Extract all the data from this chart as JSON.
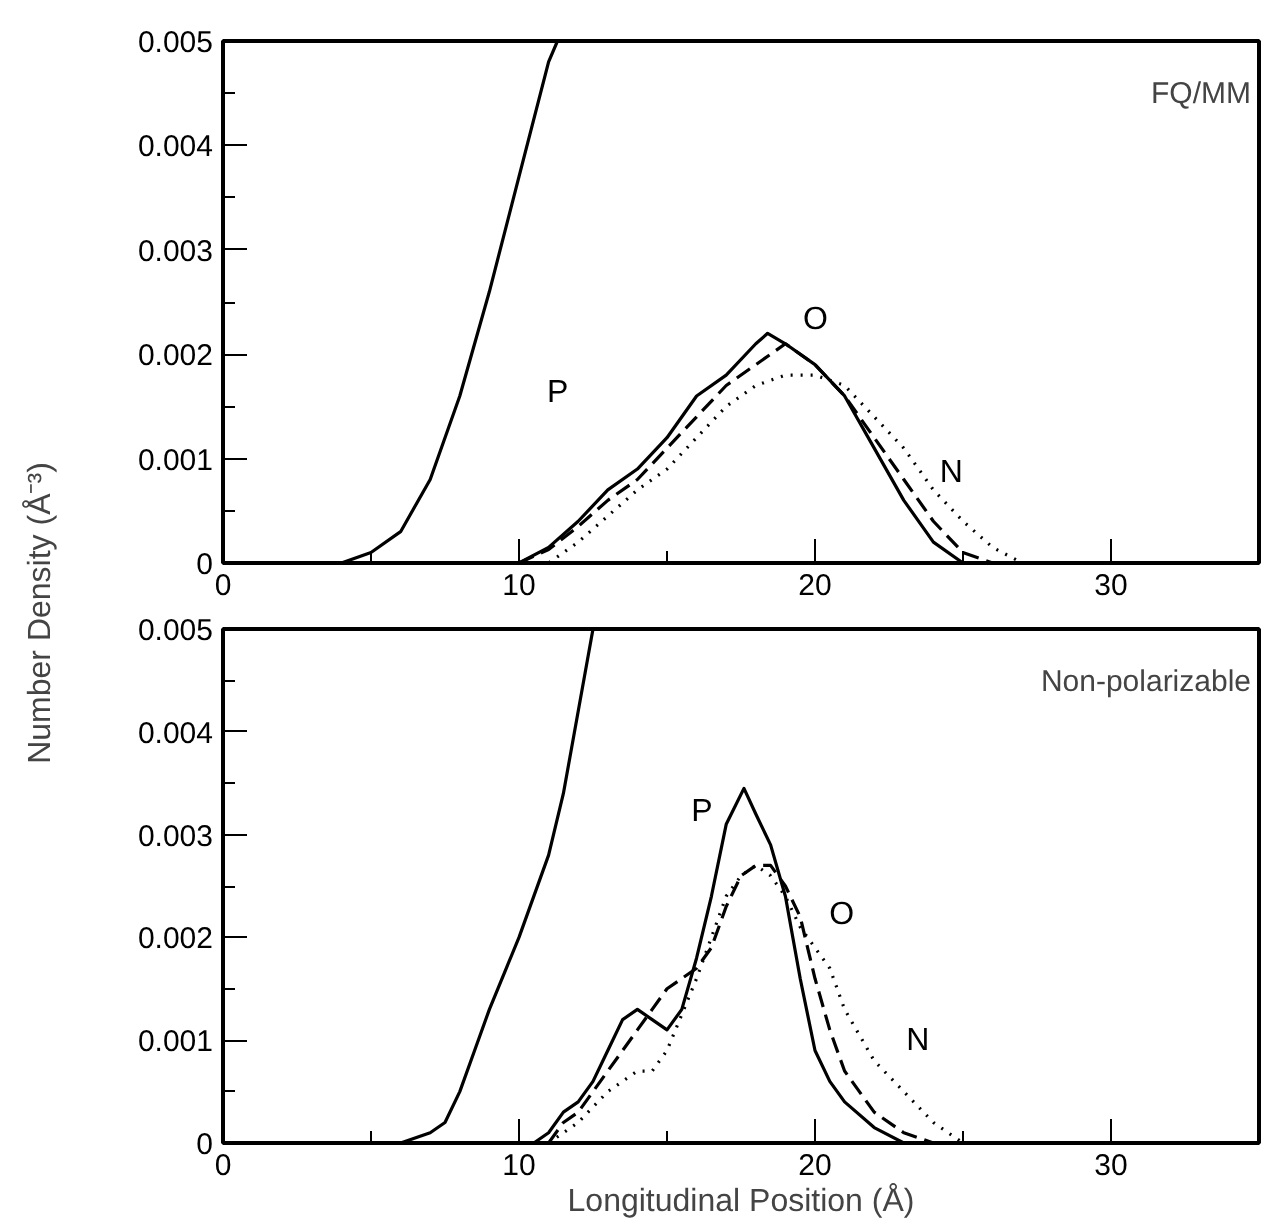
{
  "chart_data": [
    {
      "type": "line",
      "ylabel": "Number Density (Å⁻³)",
      "xlim": [
        0,
        35
      ],
      "ylim": [
        0,
        0.005
      ],
      "xticks": [
        0,
        {
          "value": 5,
          "label": null
        },
        10,
        {
          "value": 15,
          "label": null
        },
        20,
        {
          "value": 25,
          "label": null
        },
        30
      ],
      "yticks": [
        0,
        {
          "value": 0.0005,
          "label": null
        },
        0.001,
        {
          "value": 0.0015,
          "label": null
        },
        0.002,
        {
          "value": 0.0025,
          "label": null
        },
        0.003,
        {
          "value": 0.0035,
          "label": null
        },
        0.004,
        {
          "value": 0.0045,
          "label": null
        },
        0.005
      ],
      "grid": false,
      "annotations": [
        "FQ/MM"
      ],
      "series": [
        {
          "color": "#000000",
          "line_style": "solid",
          "x": [
            3,
            4,
            5,
            6,
            7,
            8,
            9,
            10,
            11,
            11.3
          ],
          "values": [
            0,
            0,
            0.0001,
            0.0003,
            0.0008,
            0.0016,
            0.0026,
            0.0037,
            0.0048,
            0.005
          ]
        },
        {
          "name": "P",
          "color": "#000000",
          "line_style": "solid",
          "x": [
            9.5,
            10,
            11,
            12,
            13,
            14,
            15,
            16,
            17,
            18,
            18.4,
            19,
            20,
            21,
            22,
            23,
            24,
            25,
            26
          ],
          "values": [
            0,
            0,
            0.00015,
            0.0004,
            0.0007,
            0.0009,
            0.0012,
            0.0016,
            0.0018,
            0.0021,
            0.0022,
            0.0021,
            0.0019,
            0.0016,
            0.0011,
            0.0006,
            0.0002,
            0,
            0
          ]
        },
        {
          "name": "O",
          "color": "#000000",
          "line_style": "dashed",
          "x": [
            10,
            11,
            12,
            13,
            14,
            15,
            16,
            17,
            18,
            19,
            20,
            21,
            22,
            23,
            24,
            25,
            26
          ],
          "values": [
            0,
            0.00013,
            0.00035,
            0.0006,
            0.0008,
            0.0011,
            0.0014,
            0.0017,
            0.0019,
            0.0021,
            0.0019,
            0.0016,
            0.0012,
            0.0008,
            0.0004,
            0.0001,
            0
          ]
        },
        {
          "name": "N",
          "color": "#000000",
          "line_style": "dotted",
          "x": [
            10,
            11,
            12,
            13,
            14,
            15,
            16,
            17,
            18,
            19,
            20,
            21,
            22,
            23,
            24,
            25,
            26,
            27,
            28
          ],
          "values": [
            0,
            0,
            0.0002,
            0.00045,
            0.0007,
            0.0009,
            0.0012,
            0.0015,
            0.0017,
            0.0018,
            0.0018,
            0.0017,
            0.0014,
            0.0011,
            0.0007,
            0.0004,
            0.00015,
            0,
            0
          ]
        }
      ]
    },
    {
      "type": "line",
      "xlabel": "Longitudinal Position (Å)",
      "xlim": [
        0,
        35
      ],
      "ylim": [
        0,
        0.005
      ],
      "xticks": [
        0,
        {
          "value": 5,
          "label": null
        },
        10,
        {
          "value": 15,
          "label": null
        },
        20,
        {
          "value": 25,
          "label": null
        },
        30
      ],
      "yticks": [
        0,
        {
          "value": 0.0005,
          "label": null
        },
        0.001,
        {
          "value": 0.0015,
          "label": null
        },
        0.002,
        {
          "value": 0.0025,
          "label": null
        },
        0.003,
        {
          "value": 0.0035,
          "label": null
        },
        0.004,
        {
          "value": 0.0045,
          "label": null
        },
        0.005
      ],
      "grid": false,
      "annotations": [
        "Non-polarizable"
      ],
      "series": [
        {
          "color": "#000000",
          "line_style": "solid",
          "x": [
            4.5,
            6,
            7,
            7.5,
            8,
            8.5,
            9,
            10,
            11,
            11.5,
            12,
            12.5
          ],
          "values": [
            0,
            0,
            0.0001,
            0.0002,
            0.0005,
            0.0009,
            0.0013,
            0.002,
            0.0028,
            0.0034,
            0.0042,
            0.005
          ]
        },
        {
          "name": "P",
          "color": "#000000",
          "line_style": "solid",
          "x": [
            10.5,
            11,
            11.5,
            12,
            12.5,
            13,
            13.5,
            14,
            14.5,
            15,
            15.5,
            16,
            16.5,
            17,
            17.6,
            18,
            18.5,
            19,
            19.5,
            20,
            20.5,
            21,
            22,
            23,
            24
          ],
          "values": [
            0,
            0.0001,
            0.0003,
            0.0004,
            0.0006,
            0.0009,
            0.0012,
            0.0013,
            0.0012,
            0.0011,
            0.0013,
            0.0018,
            0.0024,
            0.0031,
            0.00345,
            0.0032,
            0.0029,
            0.0024,
            0.0016,
            0.0009,
            0.0006,
            0.0004,
            0.00015,
            0,
            0
          ]
        },
        {
          "name": "O",
          "color": "#000000",
          "line_style": "dashed",
          "x": [
            11,
            11.5,
            12,
            13,
            14,
            14.5,
            15,
            16,
            16.5,
            17,
            17.5,
            18,
            18.5,
            19,
            19.5,
            20,
            20.5,
            21,
            22,
            23,
            24
          ],
          "values": [
            0,
            0.0002,
            0.0003,
            0.0007,
            0.0011,
            0.0013,
            0.0015,
            0.0017,
            0.0019,
            0.0023,
            0.0026,
            0.0027,
            0.0027,
            0.0025,
            0.0022,
            0.0016,
            0.0011,
            0.0007,
            0.0003,
            0.0001,
            0
          ]
        },
        {
          "name": "N",
          "color": "#000000",
          "line_style": "dotted",
          "x": [
            11,
            12,
            13,
            14,
            14.5,
            15,
            16,
            16.5,
            17,
            17.5,
            18,
            18.5,
            19,
            19.5,
            20,
            20.5,
            21,
            22,
            23,
            24,
            25,
            26
          ],
          "values": [
            0,
            0.0002,
            0.0005,
            0.0007,
            0.0007,
            0.0009,
            0.0016,
            0.002,
            0.0024,
            0.0026,
            0.0027,
            0.0026,
            0.0024,
            0.0021,
            0.0019,
            0.0017,
            0.0013,
            0.0008,
            0.0005,
            0.0002,
            0,
            0
          ]
        }
      ]
    }
  ]
}
